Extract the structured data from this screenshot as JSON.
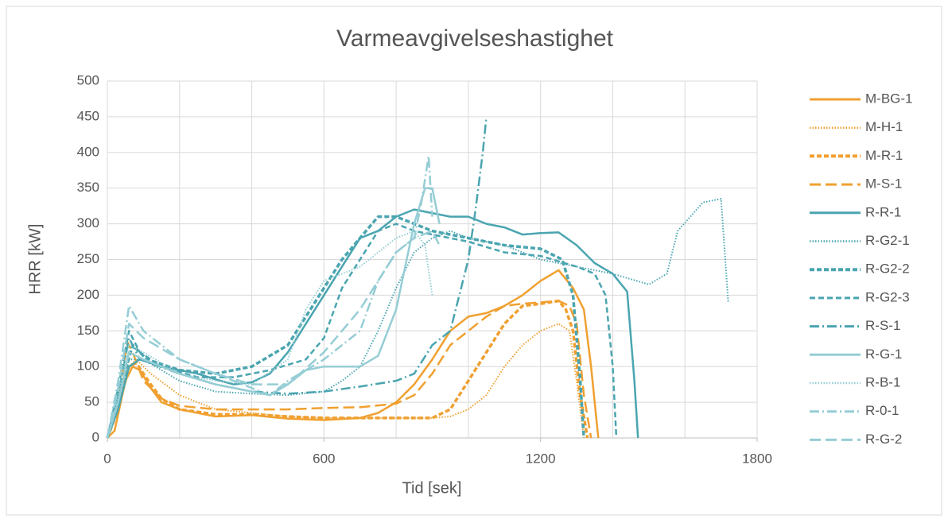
{
  "chart_data": {
    "type": "line",
    "title": "Varmeavgivelseshastighet",
    "x_label": "Tid [sek]",
    "y_label": "HRR [kW]",
    "xlim": [
      0,
      1800
    ],
    "ylim": [
      0,
      500
    ],
    "xticks": [
      0,
      600,
      1200,
      1800
    ],
    "yticks": [
      0,
      50,
      100,
      150,
      200,
      250,
      300,
      350,
      400,
      450,
      500
    ],
    "x_gridlines": [
      0,
      200,
      400,
      600,
      800,
      1000,
      1200,
      1400,
      1600,
      1800
    ],
    "grid": true,
    "legend": "right",
    "series": [
      {
        "name": "M-BG-1",
        "color": "#f0a030",
        "dash": "solid",
        "x": [
          0,
          20,
          50,
          70,
          90,
          120,
          150,
          200,
          300,
          400,
          500,
          600,
          700,
          750,
          800,
          850,
          900,
          950,
          1000,
          1050,
          1100,
          1150,
          1200,
          1250,
          1290,
          1320,
          1340,
          1360
        ],
        "values": [
          0,
          10,
          80,
          100,
          95,
          70,
          50,
          40,
          30,
          32,
          27,
          25,
          28,
          35,
          50,
          75,
          110,
          150,
          170,
          175,
          185,
          200,
          220,
          235,
          210,
          180,
          100,
          0
        ]
      },
      {
        "name": "M-H-1",
        "color": "#f0a030",
        "dash": "dot",
        "x": [
          0,
          30,
          60,
          80,
          120,
          200,
          300,
          400,
          500,
          600,
          700,
          800,
          900,
          950,
          1000,
          1050,
          1100,
          1150,
          1200,
          1250,
          1280,
          1300,
          1320
        ],
        "values": [
          0,
          40,
          100,
          110,
          90,
          60,
          40,
          35,
          30,
          28,
          28,
          28,
          28,
          30,
          40,
          60,
          100,
          130,
          150,
          160,
          150,
          80,
          0
        ]
      },
      {
        "name": "M-R-1",
        "color": "#f0a030",
        "dash": "dashthick",
        "x": [
          0,
          30,
          60,
          80,
          120,
          150,
          200,
          300,
          400,
          500,
          600,
          700,
          800,
          900,
          950,
          1000,
          1050,
          1100,
          1150,
          1200,
          1250,
          1270,
          1290,
          1310,
          1330
        ],
        "values": [
          0,
          40,
          100,
          105,
          75,
          55,
          40,
          33,
          33,
          30,
          28,
          28,
          28,
          28,
          40,
          80,
          120,
          160,
          185,
          188,
          192,
          180,
          150,
          60,
          0
        ]
      },
      {
        "name": "M-S-1",
        "color": "#f0a030",
        "dash": "longdash",
        "x": [
          0,
          30,
          55,
          70,
          100,
          150,
          200,
          300,
          400,
          500,
          600,
          700,
          800,
          850,
          900,
          950,
          1000,
          1050,
          1100,
          1150,
          1200,
          1250,
          1280,
          1300,
          1320,
          1340
        ],
        "values": [
          0,
          50,
          135,
          120,
          80,
          55,
          45,
          40,
          40,
          40,
          42,
          43,
          48,
          60,
          90,
          130,
          150,
          170,
          185,
          188,
          190,
          192,
          185,
          160,
          60,
          0
        ]
      },
      {
        "name": "R-R-1",
        "color": "#4aa5b0",
        "dash": "solid",
        "x": [
          0,
          30,
          60,
          90,
          150,
          250,
          300,
          350,
          400,
          450,
          500,
          550,
          600,
          650,
          700,
          750,
          800,
          850,
          900,
          950,
          1000,
          1050,
          1100,
          1150,
          1200,
          1250,
          1300,
          1350,
          1400,
          1440,
          1460,
          1470
        ],
        "values": [
          0,
          40,
          100,
          110,
          100,
          90,
          82,
          75,
          78,
          90,
          120,
          160,
          200,
          240,
          280,
          290,
          310,
          320,
          315,
          310,
          310,
          300,
          295,
          285,
          287,
          288,
          270,
          245,
          230,
          205,
          80,
          0
        ]
      },
      {
        "name": "R-G2-1",
        "color": "#4aa5b0",
        "dash": "dot",
        "x": [
          0,
          30,
          60,
          100,
          200,
          300,
          400,
          500,
          600,
          650,
          700,
          750,
          800,
          850,
          900,
          950,
          1000,
          1100,
          1200,
          1300,
          1400,
          1500,
          1550,
          1580,
          1650,
          1700,
          1720
        ],
        "values": [
          0,
          50,
          110,
          110,
          80,
          65,
          62,
          60,
          65,
          80,
          100,
          150,
          210,
          260,
          280,
          290,
          280,
          270,
          250,
          240,
          230,
          215,
          230,
          290,
          330,
          335,
          190
        ]
      },
      {
        "name": "R-G2-2",
        "color": "#4aa5b0",
        "dash": "dashthick",
        "x": [
          0,
          30,
          70,
          110,
          200,
          300,
          400,
          500,
          550,
          600,
          650,
          700,
          750,
          800,
          850,
          900,
          1000,
          1100,
          1200,
          1260,
          1290,
          1310,
          1320
        ],
        "values": [
          0,
          60,
          130,
          110,
          95,
          90,
          100,
          130,
          170,
          210,
          250,
          280,
          310,
          310,
          300,
          290,
          280,
          270,
          265,
          250,
          200,
          80,
          0
        ]
      },
      {
        "name": "R-G2-3",
        "color": "#4aa5b0",
        "dash": "dash",
        "x": [
          0,
          30,
          60,
          90,
          150,
          250,
          350,
          450,
          550,
          600,
          650,
          700,
          750,
          800,
          850,
          900,
          1000,
          1100,
          1200,
          1300,
          1350,
          1380,
          1400,
          1410
        ],
        "values": [
          0,
          70,
          150,
          120,
          100,
          85,
          85,
          95,
          110,
          140,
          210,
          250,
          290,
          300,
          290,
          285,
          275,
          260,
          255,
          240,
          230,
          200,
          100,
          0
        ]
      },
      {
        "name": "R-S-1",
        "color": "#4aa5b0",
        "dash": "dashdot",
        "x": [
          0,
          30,
          60,
          90,
          200,
          300,
          400,
          500,
          600,
          700,
          800,
          850,
          900,
          950,
          1000,
          1020,
          1040,
          1050
        ],
        "values": [
          0,
          60,
          140,
          110,
          90,
          75,
          65,
          62,
          65,
          72,
          80,
          90,
          130,
          150,
          250,
          320,
          400,
          450
        ]
      },
      {
        "name": "R-G-1",
        "color": "#95cdd5",
        "dash": "solid",
        "x": [
          0,
          30,
          60,
          100,
          200,
          300,
          400,
          450,
          500,
          550,
          600,
          700,
          750,
          800,
          850,
          880,
          900,
          920
        ],
        "values": [
          0,
          50,
          120,
          110,
          90,
          75,
          65,
          60,
          75,
          95,
          100,
          100,
          115,
          180,
          300,
          350,
          350,
          300
        ]
      },
      {
        "name": "R-B-1",
        "color": "#95cdd5",
        "dash": "dot",
        "x": [
          0,
          30,
          60,
          100,
          200,
          300,
          400,
          500,
          550,
          600,
          700,
          800,
          850,
          880,
          900
        ],
        "values": [
          0,
          60,
          130,
          120,
          90,
          80,
          75,
          110,
          180,
          220,
          240,
          280,
          290,
          270,
          200
        ]
      },
      {
        "name": "R-0-1",
        "color": "#95cdd5",
        "dash": "dashdot",
        "x": [
          0,
          30,
          60,
          100,
          150,
          200,
          300,
          400,
          450,
          500,
          600,
          700,
          750,
          800,
          850,
          870,
          890,
          900
        ],
        "values": [
          0,
          80,
          185,
          150,
          130,
          110,
          90,
          70,
          60,
          80,
          110,
          150,
          220,
          260,
          280,
          330,
          395,
          310
        ]
      },
      {
        "name": "R-G-2",
        "color": "#95cdd5",
        "dash": "longdash",
        "x": [
          0,
          30,
          60,
          100,
          200,
          300,
          400,
          500,
          600,
          700,
          750,
          800,
          850,
          900,
          920
        ],
        "values": [
          0,
          70,
          160,
          140,
          110,
          90,
          75,
          75,
          120,
          180,
          220,
          260,
          280,
          290,
          270
        ]
      }
    ]
  }
}
